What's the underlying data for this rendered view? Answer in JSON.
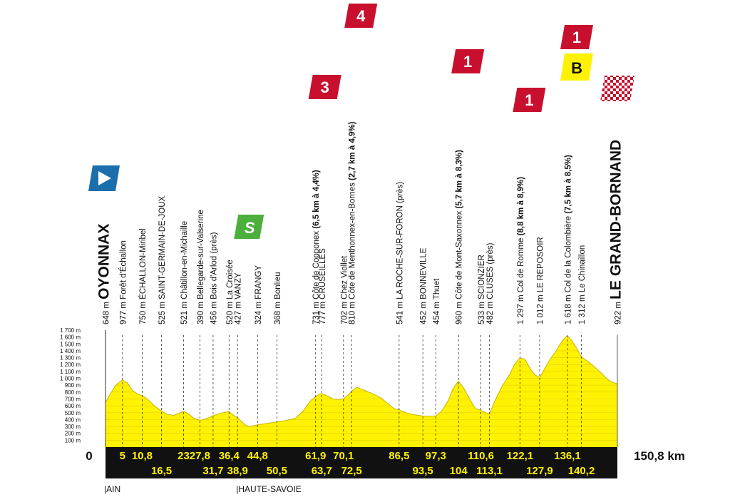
{
  "chart_data": {
    "type": "area",
    "x_unit": "km",
    "y_unit": "m",
    "start_label": "0",
    "finish_label": "150,8 km",
    "y_ticks": [
      "100 m",
      "200 m",
      "300 m",
      "400 m",
      "500 m",
      "600 m",
      "700 m",
      "800 m",
      "900 m",
      "1 000 m",
      "1 100 m",
      "1 200 m",
      "1 300 m",
      "1 400 m",
      "1 500 m",
      "1 600 m",
      "1 700 m"
    ],
    "ylim": [
      0,
      1700
    ],
    "xlim": [
      0,
      150.8
    ],
    "profile": [
      [
        0,
        648
      ],
      [
        1.5,
        780
      ],
      [
        3,
        900
      ],
      [
        5,
        977
      ],
      [
        6.5,
        930
      ],
      [
        8,
        820
      ],
      [
        9.5,
        770
      ],
      [
        10.8,
        750
      ],
      [
        12.5,
        690
      ],
      [
        14,
        620
      ],
      [
        15.5,
        560
      ],
      [
        16.5,
        525
      ],
      [
        18,
        480
      ],
      [
        20,
        460
      ],
      [
        21.5,
        490
      ],
      [
        23,
        521
      ],
      [
        24.5,
        480
      ],
      [
        26,
        420
      ],
      [
        27.8,
        390
      ],
      [
        29,
        400
      ],
      [
        30.5,
        430
      ],
      [
        31.7,
        456
      ],
      [
        33,
        480
      ],
      [
        34.5,
        500
      ],
      [
        36.4,
        520
      ],
      [
        37.5,
        470
      ],
      [
        38.9,
        427
      ],
      [
        41,
        330
      ],
      [
        42,
        300
      ],
      [
        43.5,
        310
      ],
      [
        44.8,
        324
      ],
      [
        47,
        340
      ],
      [
        49,
        355
      ],
      [
        50.5,
        368
      ],
      [
        53,
        385
      ],
      [
        56,
        420
      ],
      [
        58.5,
        540
      ],
      [
        60.5,
        680
      ],
      [
        61.9,
        731
      ],
      [
        63,
        770
      ],
      [
        63.7,
        777
      ],
      [
        65.5,
        740
      ],
      [
        67,
        700
      ],
      [
        68.5,
        690
      ],
      [
        70.1,
        702
      ],
      [
        71.5,
        760
      ],
      [
        72.5,
        810
      ],
      [
        74,
        870
      ],
      [
        76,
        830
      ],
      [
        78.5,
        780
      ],
      [
        81,
        720
      ],
      [
        83,
        640
      ],
      [
        85,
        560
      ],
      [
        86.5,
        541
      ],
      [
        88.5,
        500
      ],
      [
        91,
        470
      ],
      [
        93.5,
        452
      ],
      [
        95.5,
        450
      ],
      [
        97.3,
        454
      ],
      [
        99,
        520
      ],
      [
        101,
        680
      ],
      [
        102.5,
        860
      ],
      [
        104,
        960
      ],
      [
        105.5,
        860
      ],
      [
        107.5,
        680
      ],
      [
        109,
        560
      ],
      [
        110.6,
        533
      ],
      [
        112,
        500
      ],
      [
        113.1,
        482
      ],
      [
        115,
        700
      ],
      [
        117,
        900
      ],
      [
        119,
        1050
      ],
      [
        120.5,
        1200
      ],
      [
        122.1,
        1297
      ],
      [
        123.5,
        1280
      ],
      [
        125,
        1150
      ],
      [
        126.5,
        1050
      ],
      [
        127.9,
        1012
      ],
      [
        129.5,
        1150
      ],
      [
        131,
        1280
      ],
      [
        132.5,
        1380
      ],
      [
        134,
        1500
      ],
      [
        135,
        1570
      ],
      [
        136.1,
        1618
      ],
      [
        137.5,
        1540
      ],
      [
        139,
        1420
      ],
      [
        140.2,
        1312
      ],
      [
        142,
        1250
      ],
      [
        144,
        1170
      ],
      [
        146,
        1080
      ],
      [
        148,
        980
      ],
      [
        149.5,
        940
      ],
      [
        150.8,
        922
      ]
    ],
    "km_row_top": [
      {
        "km": 5,
        "label": "5"
      },
      {
        "km": 10.8,
        "label": "10,8"
      },
      {
        "km": 23,
        "label": "23"
      },
      {
        "km": 27.8,
        "label": "27,8"
      },
      {
        "km": 36.4,
        "label": "36,4"
      },
      {
        "km": 44.8,
        "label": "44,8"
      },
      {
        "km": 61.9,
        "label": "61,9"
      },
      {
        "km": 70.1,
        "label": "70,1"
      },
      {
        "km": 86.5,
        "label": "86,5"
      },
      {
        "km": 97.3,
        "label": "97,3"
      },
      {
        "km": 110.6,
        "label": "110,6"
      },
      {
        "km": 122.1,
        "label": "122,1"
      },
      {
        "km": 136.1,
        "label": "136,1"
      }
    ],
    "km_row_bottom": [
      {
        "km": 16.5,
        "label": "16,5"
      },
      {
        "km": 31.7,
        "label": "31,7"
      },
      {
        "km": 38.9,
        "label": "38,9"
      },
      {
        "km": 50.5,
        "label": "50,5"
      },
      {
        "km": 63.7,
        "label": "63,7"
      },
      {
        "km": 72.5,
        "label": "72,5"
      },
      {
        "km": 93.5,
        "label": "93,5"
      },
      {
        "km": 104,
        "label": "104"
      },
      {
        "km": 113.1,
        "label": "113,1"
      },
      {
        "km": 127.9,
        "label": "127,9"
      },
      {
        "km": 140.2,
        "label": "140,2"
      }
    ],
    "waypoints": [
      {
        "km": 0,
        "elev": "648 m",
        "name": "OYONNAX",
        "style": "start"
      },
      {
        "km": 5,
        "elev": "977 m",
        "name": "Forêt d'Échallon"
      },
      {
        "km": 10.8,
        "elev": "750 m",
        "name": "ÉCHALLON-Miribel"
      },
      {
        "km": 16.5,
        "elev": "525 m",
        "name": "SAINT-GERMAIN-DE-JOUX"
      },
      {
        "km": 23,
        "elev": "521 m",
        "name": "Châtillon-en-Michaille"
      },
      {
        "km": 27.8,
        "elev": "390 m",
        "name": "Bellegarde-sur-Valserine"
      },
      {
        "km": 31.7,
        "elev": "456 m",
        "name": "Bois d'Arlod (près)"
      },
      {
        "km": 36.4,
        "elev": "520 m",
        "name": "La Croisée"
      },
      {
        "km": 38.9,
        "elev": "427 m",
        "name": "VANZY"
      },
      {
        "km": 44.8,
        "elev": "324 m",
        "name": "FRANGY"
      },
      {
        "km": 50.5,
        "elev": "368 m",
        "name": "Bonlieu"
      },
      {
        "km": 61.9,
        "elev": "731 m",
        "name": "Côte de Copponex",
        "climb": "(6,5 km à 4,4%)"
      },
      {
        "km": 63.7,
        "elev": "777 m",
        "name": "CRUSEILLES"
      },
      {
        "km": 70.1,
        "elev": "702 m",
        "name": "Chez Viollet"
      },
      {
        "km": 72.5,
        "elev": "810 m",
        "name": "Côte de Menthonnex-en-Bornes",
        "climb": "(2,7 km à 4,9%)"
      },
      {
        "km": 86.5,
        "elev": "541 m",
        "name": "LA ROCHE-SUR-FORON (près)"
      },
      {
        "km": 93.5,
        "elev": "452 m",
        "name": "BONNEVILLE"
      },
      {
        "km": 97.3,
        "elev": "454 m",
        "name": "Thuet"
      },
      {
        "km": 104,
        "elev": "960 m",
        "name": "Côte de Mont-Saxonnex",
        "climb": "(5,7 km à 8,3%)"
      },
      {
        "km": 110.6,
        "elev": "533 m",
        "name": "SCIONZIER"
      },
      {
        "km": 113.1,
        "elev": "482 m",
        "name": "CLUSES (près)"
      },
      {
        "km": 122.1,
        "elev": "1 297 m",
        "name": "Col de Romme",
        "climb": "(8,8 km à 8,9%)"
      },
      {
        "km": 127.9,
        "elev": "1 012 m",
        "name": "LE REPOSOIR"
      },
      {
        "km": 136.1,
        "elev": "1 618 m",
        "name": "Col de la Colombière",
        "climb": "(7,5 km à 8,5%)"
      },
      {
        "km": 140.2,
        "elev": "1 312 m",
        "name": "Le Chinaillon"
      },
      {
        "km": 150.8,
        "elev": "922 m",
        "name": "LE GRAND-BORNAND",
        "style": "finish"
      }
    ],
    "climb_badges": [
      {
        "km": 61.9,
        "category": "3"
      },
      {
        "km": 72.5,
        "category": "4"
      },
      {
        "km": 104,
        "category": "1"
      },
      {
        "km": 122.1,
        "category": "1"
      },
      {
        "km": 136.1,
        "category": "1",
        "bonus": "B"
      }
    ],
    "sprint_badge": {
      "km": 38.9,
      "label": "S"
    },
    "departments": [
      {
        "km": 0,
        "label": "|AIN"
      },
      {
        "km": 38.9,
        "label": "|HAUTE-SAVOIE"
      }
    ],
    "colors": {
      "profile_fill": "#fff200",
      "profile_stroke": "#c9b400",
      "badge_red": "#c8102e",
      "badge_yellow": "#fff200",
      "start_blue": "#1b6fad",
      "sprint_green": "#4caf3c",
      "bar_black": "#111111",
      "km_text": "#fff200"
    }
  }
}
